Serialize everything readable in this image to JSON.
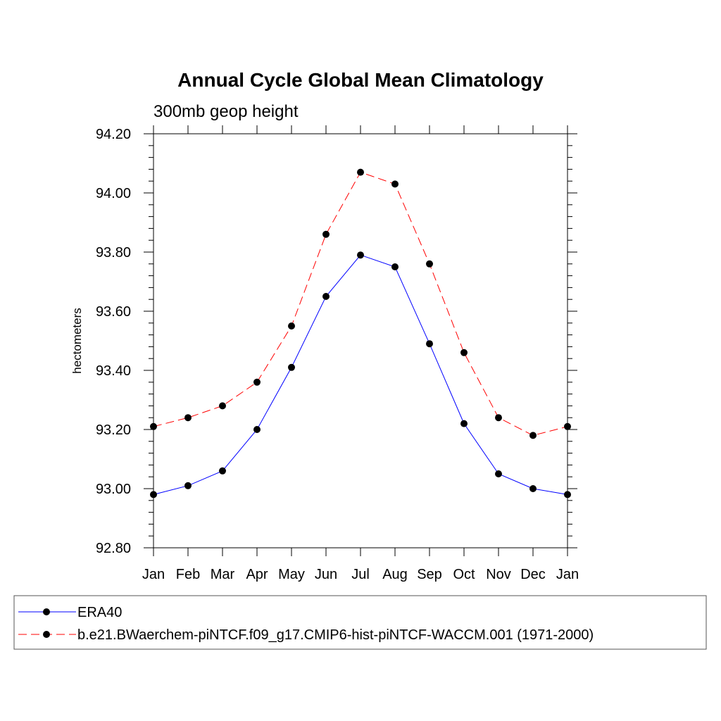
{
  "chart_data": {
    "type": "line",
    "title": "Annual Cycle Global Mean Climatology",
    "subtitle": "300mb geop height",
    "xlabel": "",
    "ylabel": "hectometers",
    "categories": [
      "Jan",
      "Feb",
      "Mar",
      "Apr",
      "May",
      "Jun",
      "Jul",
      "Aug",
      "Sep",
      "Oct",
      "Nov",
      "Dec",
      "Jan"
    ],
    "ylim": [
      92.8,
      94.2
    ],
    "yticks": [
      "92.80",
      "93.00",
      "93.20",
      "93.40",
      "93.60",
      "93.80",
      "94.00",
      "94.20"
    ],
    "grid": false,
    "legend_position": "bottom",
    "series": [
      {
        "name": "ERA40",
        "color": "#0000ff",
        "dash": "solid",
        "values": [
          92.98,
          93.01,
          93.06,
          93.2,
          93.41,
          93.65,
          93.79,
          93.75,
          93.49,
          93.22,
          93.05,
          93.0,
          92.98
        ]
      },
      {
        "name": "b.e21.BWaerchem-piNTCF.f09_g17.CMIP6-hist-piNTCF-WACCM.001 (1971-2000)",
        "color": "#ff0000",
        "dash": "dashed",
        "values": [
          93.21,
          93.24,
          93.28,
          93.36,
          93.55,
          93.86,
          94.07,
          94.03,
          93.76,
          93.46,
          93.24,
          93.18,
          93.21
        ]
      }
    ]
  }
}
